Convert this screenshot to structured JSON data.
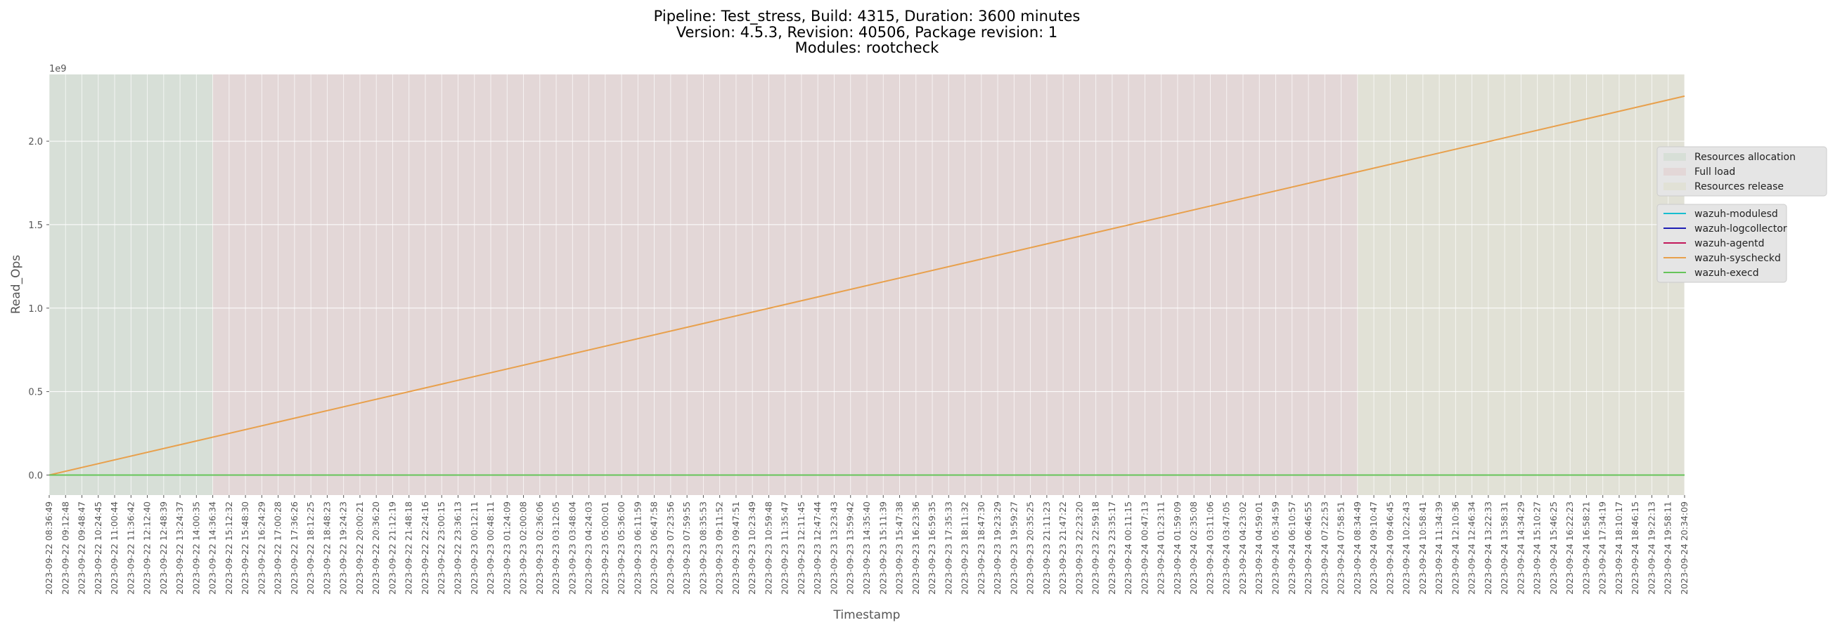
{
  "chart_data": {
    "type": "line",
    "title_lines": [
      "Pipeline: Test_stress, Build: 4315, Duration: 3600 minutes",
      "Version: 4.5.3, Revision: 40506, Package revision: 1",
      "Modules: rootcheck"
    ],
    "xlabel": "Timestamp",
    "ylabel": "Read_Ops",
    "y_multiplier_label": "1e9",
    "ylim": [
      -0.12,
      2.4
    ],
    "yticks": [
      0.0,
      0.5,
      1.0,
      1.5,
      2.0
    ],
    "ytick_labels": [
      "0.0",
      "0.5",
      "1.0",
      "1.5",
      "2.0"
    ],
    "grid": true,
    "legend_position": "right",
    "x": [
      "2023-09-22 08:36:49",
      "2023-09-22 09:12:48",
      "2023-09-22 09:48:47",
      "2023-09-22 10:24:45",
      "2023-09-22 11:00:44",
      "2023-09-22 11:36:42",
      "2023-09-22 12:12:40",
      "2023-09-22 12:48:39",
      "2023-09-22 13:24:37",
      "2023-09-22 14:00:35",
      "2023-09-22 14:36:34",
      "2023-09-22 15:12:32",
      "2023-09-22 15:48:30",
      "2023-09-22 16:24:29",
      "2023-09-22 17:00:28",
      "2023-09-22 17:36:26",
      "2023-09-22 18:12:25",
      "2023-09-22 18:48:23",
      "2023-09-22 19:24:23",
      "2023-09-22 20:00:21",
      "2023-09-22 20:36:20",
      "2023-09-22 21:12:19",
      "2023-09-22 21:48:18",
      "2023-09-22 22:24:16",
      "2023-09-22 23:00:15",
      "2023-09-22 23:36:13",
      "2023-09-23 00:12:11",
      "2023-09-23 00:48:11",
      "2023-09-23 01:24:09",
      "2023-09-23 02:00:08",
      "2023-09-23 02:36:06",
      "2023-09-23 03:12:05",
      "2023-09-23 03:48:04",
      "2023-09-23 04:24:03",
      "2023-09-23 05:00:01",
      "2023-09-23 05:36:00",
      "2023-09-23 06:11:59",
      "2023-09-23 06:47:58",
      "2023-09-23 07:23:56",
      "2023-09-23 07:59:55",
      "2023-09-23 08:35:53",
      "2023-09-23 09:11:52",
      "2023-09-23 09:47:51",
      "2023-09-23 10:23:49",
      "2023-09-23 10:59:48",
      "2023-09-23 11:35:47",
      "2023-09-23 12:11:45",
      "2023-09-23 12:47:44",
      "2023-09-23 13:23:43",
      "2023-09-23 13:59:42",
      "2023-09-23 14:35:40",
      "2023-09-23 15:11:39",
      "2023-09-23 15:47:38",
      "2023-09-23 16:23:36",
      "2023-09-23 16:59:35",
      "2023-09-23 17:35:33",
      "2023-09-23 18:11:32",
      "2023-09-23 18:47:30",
      "2023-09-23 19:23:29",
      "2023-09-23 19:59:27",
      "2023-09-23 20:35:25",
      "2023-09-23 21:11:23",
      "2023-09-23 21:47:22",
      "2023-09-23 22:23:20",
      "2023-09-23 22:59:18",
      "2023-09-23 23:35:17",
      "2023-09-24 00:11:15",
      "2023-09-24 00:47:13",
      "2023-09-24 01:23:11",
      "2023-09-24 01:59:09",
      "2023-09-24 02:35:08",
      "2023-09-24 03:11:06",
      "2023-09-24 03:47:05",
      "2023-09-24 04:23:02",
      "2023-09-24 04:59:01",
      "2023-09-24 05:34:59",
      "2023-09-24 06:10:57",
      "2023-09-24 06:46:55",
      "2023-09-24 07:22:53",
      "2023-09-24 07:58:51",
      "2023-09-24 08:34:49",
      "2023-09-24 09:10:47",
      "2023-09-24 09:46:45",
      "2023-09-24 10:22:43",
      "2023-09-24 10:58:41",
      "2023-09-24 11:34:39",
      "2023-09-24 12:10:36",
      "2023-09-24 12:46:34",
      "2023-09-24 13:22:33",
      "2023-09-24 13:58:31",
      "2023-09-24 14:34:29",
      "2023-09-24 15:10:27",
      "2023-09-24 15:46:25",
      "2023-09-24 16:22:23",
      "2023-09-24 16:58:21",
      "2023-09-24 17:34:19",
      "2023-09-24 18:10:17",
      "2023-09-24 18:46:15",
      "2023-09-24 19:22:13",
      "2023-09-24 19:58:11",
      "2023-09-24 20:34:09"
    ],
    "phases": [
      {
        "name": "Resources allocation",
        "from_index": 0,
        "to_index": 10,
        "color": "#2ca02c"
      },
      {
        "name": "Full load",
        "from_index": 10,
        "to_index": 80,
        "color": "#d62728"
      },
      {
        "name": "Resources release",
        "from_index": 80,
        "to_index": 100,
        "color": "#bcbd22"
      }
    ],
    "series": [
      {
        "name": "wazuh-modulesd",
        "color": "#17becf",
        "start": 0.0,
        "end": 0.0
      },
      {
        "name": "wazuh-logcollector",
        "color": "#1f1fb4",
        "start": 0.0,
        "end": 0.0
      },
      {
        "name": "wazuh-agentd",
        "color": "#c2185b",
        "start": 0.0,
        "end": 0.0
      },
      {
        "name": "wazuh-syscheckd",
        "color": "#e8a04c",
        "start": 0.0,
        "end": 2.27
      },
      {
        "name": "wazuh-execd",
        "color": "#66c45a",
        "start": 0.0,
        "end": 0.0
      }
    ]
  }
}
